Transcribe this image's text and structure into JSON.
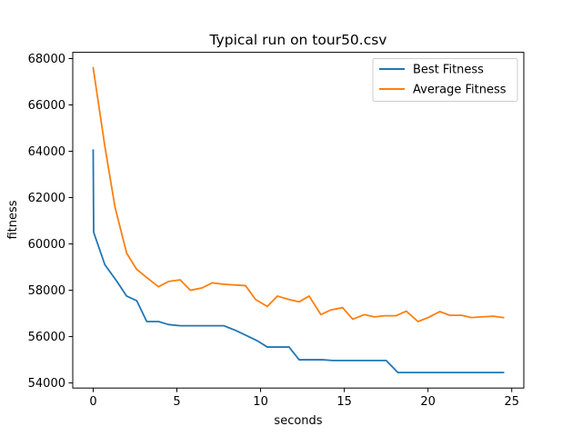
{
  "chart_data": {
    "type": "line",
    "title": "Typical run on tour50.csv",
    "xlabel": "seconds",
    "ylabel": "fitness",
    "xlim": [
      -1.22,
      25.72
    ],
    "ylim": [
      53780,
      68270
    ],
    "xticks": [
      0,
      5,
      10,
      15,
      20,
      25
    ],
    "yticks": [
      54000,
      56000,
      58000,
      60000,
      62000,
      64000,
      66000,
      68000
    ],
    "grid": false,
    "legend_position": "top-right",
    "series": [
      {
        "name": "Best Fitness",
        "color": "#1f77b4",
        "x": [
          0,
          0.03,
          0.7,
          1.4,
          2.0,
          2.6,
          3.2,
          3.9,
          4.5,
          5.2,
          5.8,
          6.5,
          7.2,
          7.8,
          8.5,
          9.2,
          9.8,
          10.4,
          11.1,
          11.7,
          12.3,
          13.0,
          13.7,
          14.3,
          15.0,
          15.6,
          16.3,
          16.9,
          17.5,
          18.2,
          18.8,
          19.5,
          20.1,
          20.8,
          21.4,
          22.1,
          22.7,
          23.3,
          24.0,
          24.5
        ],
        "y": [
          64050,
          60500,
          59100,
          58400,
          57750,
          57550,
          56650,
          56650,
          56520,
          56470,
          56470,
          56470,
          56470,
          56470,
          56270,
          56030,
          55820,
          55550,
          55550,
          55550,
          55000,
          55000,
          55000,
          54970,
          54970,
          54970,
          54970,
          54970,
          54970,
          54450,
          54450,
          54450,
          54450,
          54450,
          54450,
          54450,
          54450,
          54450,
          54450,
          54450
        ]
      },
      {
        "name": "Average Fitness",
        "color": "#ff7f0e",
        "x": [
          0,
          0.7,
          1.3,
          2.0,
          2.6,
          3.2,
          3.9,
          4.5,
          5.2,
          5.8,
          6.5,
          7.1,
          7.8,
          8.4,
          9.1,
          9.7,
          10.4,
          11.0,
          11.7,
          12.3,
          12.9,
          13.6,
          14.2,
          14.9,
          15.5,
          16.2,
          16.8,
          17.4,
          18.1,
          18.7,
          19.4,
          20.0,
          20.7,
          21.3,
          22.0,
          22.6,
          23.2,
          23.9,
          24.5
        ],
        "y": [
          67600,
          64200,
          61600,
          59600,
          58900,
          58550,
          58150,
          58380,
          58450,
          58000,
          58100,
          58320,
          58260,
          58230,
          58200,
          57600,
          57300,
          57750,
          57600,
          57500,
          57750,
          56950,
          57150,
          57250,
          56750,
          56950,
          56850,
          56900,
          56900,
          57100,
          56650,
          56820,
          57080,
          56920,
          56920,
          56820,
          56850,
          56880,
          56820
        ]
      }
    ]
  }
}
